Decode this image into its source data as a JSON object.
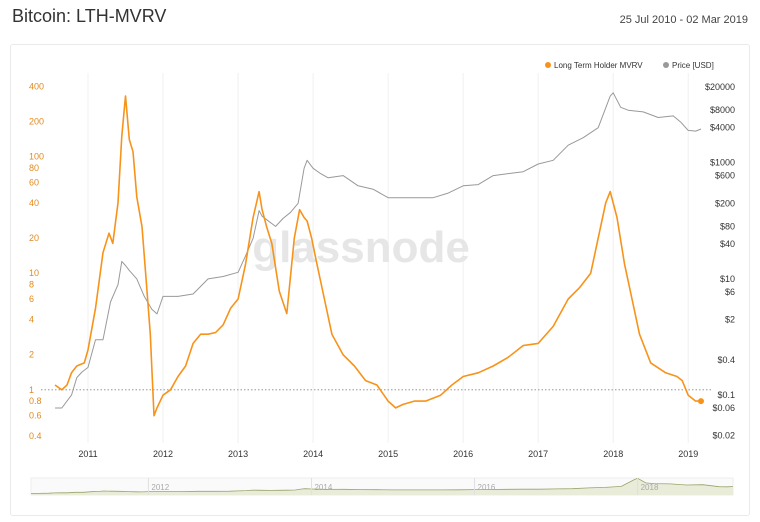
{
  "header": {
    "title": "Bitcoin: LTH-MVRV",
    "date_range": "25 Jul 2010 - 02 Mar 2019"
  },
  "watermark": "glassnode",
  "colors": {
    "mvrv": "#f7931a",
    "price": "#999999",
    "left_axis_text": "#e08a1e",
    "right_axis_text": "#333333",
    "grid": "#f0f0f0",
    "reference_line": "#888888",
    "navigator_line": "#9aa36a",
    "navigator_fill": "#e9ecd9"
  },
  "chart_data": {
    "type": "line",
    "title": "Bitcoin: LTH-MVRV",
    "xlabel": "",
    "ylabel": "",
    "x_range": [
      2010.56,
      2019.17
    ],
    "x_ticks": [
      2011,
      2012,
      2013,
      2014,
      2015,
      2016,
      2017,
      2018,
      2019
    ],
    "legend": [
      {
        "name": "Long Term Holder MVRV",
        "color": "#f7931a",
        "icon": "dot-icon"
      },
      {
        "name": "Price [USD]",
        "color": "#999999",
        "icon": "dot-icon"
      }
    ],
    "legend_position": "top-right",
    "left_axis": {
      "scale": "log",
      "range": [
        0.35,
        520
      ],
      "ticks": [
        0.4,
        0.6,
        0.8,
        1,
        2,
        4,
        6,
        8,
        10,
        20,
        40,
        60,
        80,
        100,
        200,
        400
      ],
      "labels": [
        "0.4",
        "0.6",
        "0.8",
        "1",
        "2",
        "4",
        "6",
        "8",
        "10",
        "20",
        "40",
        "60",
        "80",
        "100",
        "200",
        "400"
      ]
    },
    "right_axis": {
      "scale": "log",
      "range": [
        0.015,
        35000
      ],
      "ticks": [
        0.02,
        0.06,
        0.1,
        0.4,
        2,
        6,
        10,
        40,
        80,
        200,
        600,
        1000,
        4000,
        8000,
        20000
      ],
      "labels": [
        "$0.02",
        "$0.06",
        "$0.1",
        "$0.4",
        "$2",
        "$6",
        "$10",
        "$40",
        "$80",
        "$200",
        "$600",
        "$1000",
        "$4000",
        "$8000",
        "$20000"
      ]
    },
    "reference_line": {
      "axis": "left",
      "value": 1,
      "style": "dotted"
    },
    "series": [
      {
        "name": "Long Term Holder MVRV",
        "axis": "left",
        "x": [
          2010.56,
          2010.65,
          2010.72,
          2010.78,
          2010.85,
          2010.95,
          2011.0,
          2011.1,
          2011.2,
          2011.28,
          2011.33,
          2011.4,
          2011.45,
          2011.5,
          2011.55,
          2011.6,
          2011.65,
          2011.72,
          2011.78,
          2011.83,
          2011.88,
          2011.92,
          2012.0,
          2012.1,
          2012.2,
          2012.3,
          2012.4,
          2012.5,
          2012.6,
          2012.7,
          2012.8,
          2012.9,
          2013.0,
          2013.1,
          2013.2,
          2013.28,
          2013.32,
          2013.38,
          2013.45,
          2013.55,
          2013.65,
          2013.75,
          2013.82,
          2013.88,
          2013.92,
          2013.98,
          2014.05,
          2014.15,
          2014.25,
          2014.4,
          2014.55,
          2014.7,
          2014.85,
          2015.0,
          2015.1,
          2015.2,
          2015.35,
          2015.5,
          2015.7,
          2015.85,
          2016.0,
          2016.2,
          2016.4,
          2016.6,
          2016.8,
          2017.0,
          2017.2,
          2017.4,
          2017.55,
          2017.7,
          2017.8,
          2017.9,
          2017.96,
          2018.05,
          2018.15,
          2018.25,
          2018.35,
          2018.5,
          2018.7,
          2018.85,
          2018.92,
          2019.0,
          2019.1,
          2019.17
        ],
        "values": [
          1.1,
          1.0,
          1.1,
          1.4,
          1.6,
          1.7,
          2.2,
          5,
          15,
          22,
          18,
          40,
          150,
          330,
          140,
          110,
          45,
          25,
          8,
          3,
          0.6,
          0.7,
          0.9,
          1.0,
          1.3,
          1.6,
          2.5,
          3.0,
          3.0,
          3.1,
          3.6,
          5,
          6,
          12,
          30,
          50,
          35,
          25,
          18,
          7,
          4.5,
          20,
          35,
          30,
          28,
          20,
          12,
          6,
          3,
          2,
          1.6,
          1.2,
          1.1,
          0.8,
          0.7,
          0.75,
          0.8,
          0.8,
          0.9,
          1.1,
          1.3,
          1.4,
          1.6,
          1.9,
          2.4,
          2.5,
          3.5,
          6,
          7.5,
          10,
          20,
          40,
          50,
          30,
          12,
          6,
          3,
          1.7,
          1.4,
          1.3,
          1.2,
          0.9,
          0.8,
          0.8
        ]
      },
      {
        "name": "Price [USD]",
        "axis": "right",
        "x": [
          2010.56,
          2010.65,
          2010.78,
          2010.85,
          2010.92,
          2011.0,
          2011.1,
          2011.2,
          2011.3,
          2011.4,
          2011.45,
          2011.5,
          2011.55,
          2011.65,
          2011.75,
          2011.85,
          2011.92,
          2012.0,
          2012.2,
          2012.4,
          2012.6,
          2012.8,
          2013.0,
          2013.1,
          2013.2,
          2013.28,
          2013.32,
          2013.4,
          2013.5,
          2013.6,
          2013.7,
          2013.8,
          2013.88,
          2013.92,
          2014.0,
          2014.1,
          2014.2,
          2014.4,
          2014.6,
          2014.8,
          2015.0,
          2015.2,
          2015.4,
          2015.6,
          2015.8,
          2016.0,
          2016.2,
          2016.4,
          2016.6,
          2016.8,
          2017.0,
          2017.2,
          2017.4,
          2017.6,
          2017.8,
          2017.96,
          2018.0,
          2018.1,
          2018.2,
          2018.4,
          2018.6,
          2018.8,
          2018.9,
          2019.0,
          2019.1,
          2019.17
        ],
        "values": [
          0.06,
          0.06,
          0.1,
          0.2,
          0.25,
          0.3,
          0.9,
          0.9,
          4,
          8,
          20,
          17,
          14,
          10,
          5,
          3,
          2.5,
          5,
          5,
          5.5,
          10,
          11,
          13,
          25,
          50,
          150,
          120,
          100,
          80,
          110,
          140,
          200,
          800,
          1100,
          800,
          650,
          550,
          600,
          400,
          350,
          250,
          250,
          250,
          250,
          300,
          400,
          420,
          600,
          650,
          700,
          950,
          1100,
          2000,
          2700,
          4000,
          14000,
          16000,
          9000,
          8000,
          7500,
          6000,
          6400,
          5000,
          3600,
          3500,
          3800
        ]
      }
    ]
  },
  "navigator": {
    "year_labels": [
      "2012",
      "2014",
      "2016",
      "2018"
    ]
  }
}
